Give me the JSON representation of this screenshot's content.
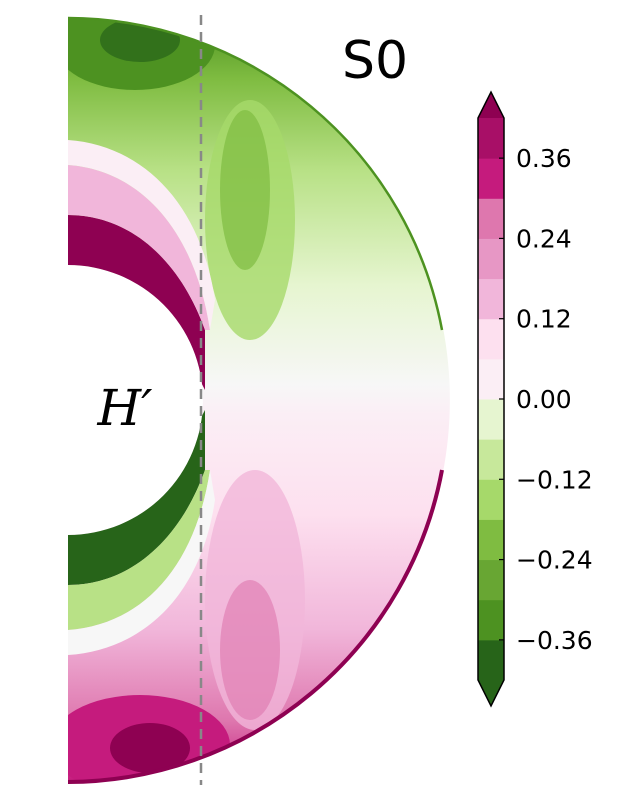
{
  "chart_data": {
    "type": "heatmap",
    "title": "S0",
    "quantity_label": "H′",
    "geometry": "meridional half-annulus (spherical shell cross-section)",
    "colormap": "PiYG reversed (green negative, white zero, magenta positive)",
    "clim": [
      -0.42,
      0.42
    ],
    "colorbar": {
      "ticks": [
        0.36,
        0.24,
        0.12,
        0.0,
        -0.12,
        -0.24,
        -0.36
      ],
      "tick_labels": [
        "0.36",
        "0.24",
        "0.12",
        "0.00",
        "−0.12",
        "−0.24",
        "−0.36"
      ],
      "extend": "both",
      "levels": 14
    },
    "reference_line": "dashed vertical line tangent to inner boundary",
    "value_field_description": "Antisymmetric about equator: negative (green) in northern hemisphere, positive (magenta) in southern hemisphere; strongest magnitudes near inner boundary at mid-latitudes and near outer polar regions"
  },
  "colors": {
    "neg_strong": "#276419",
    "pos_strong": "#8e0152",
    "zero": "#f7f7f7",
    "dashed_line": "#888888"
  }
}
